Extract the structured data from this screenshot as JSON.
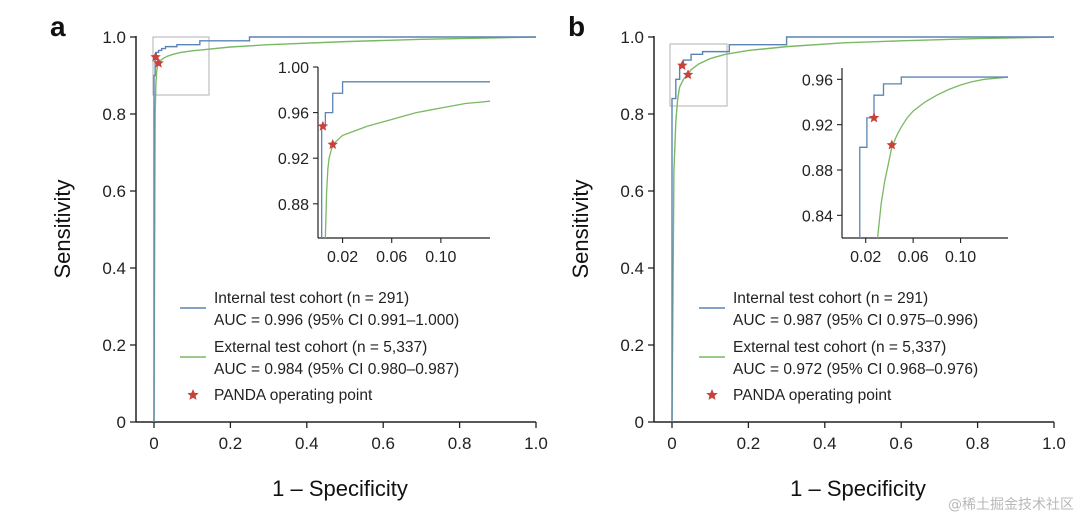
{
  "figure": {
    "watermark": "@稀土掘金技术社区"
  },
  "colors": {
    "internal": "#5b84b3",
    "external": "#79b962",
    "operating_point": "#c8413a",
    "axis": "#222222",
    "inset_box": "#bdbdbd"
  },
  "chart_data": [
    {
      "panel_label": "a",
      "type": "line",
      "xlabel": "1 – Specificity",
      "ylabel": "Sensitivity",
      "xlim": [
        0,
        1
      ],
      "ylim": [
        0,
        1
      ],
      "xticks": [
        "0",
        "0.2",
        "0.4",
        "0.6",
        "0.8",
        "1.0"
      ],
      "yticks": [
        "0",
        "0.2",
        "0.4",
        "0.6",
        "0.8",
        "1.0"
      ],
      "grid": false,
      "legend_placement": "lower-right",
      "series": [
        {
          "name": "Internal test cohort (n = 291)",
          "auc_label": "AUC = 0.996 (95% CI 0.991–1.000)",
          "x": [
            0,
            0,
            0.003,
            0.003,
            0.006,
            0.006,
            0.012,
            0.012,
            0.02,
            0.02,
            0.03,
            0.03,
            0.06,
            0.06,
            0.12,
            0.12,
            0.25,
            0.25,
            1.0
          ],
          "y": [
            0,
            0.9,
            0.9,
            0.945,
            0.945,
            0.96,
            0.96,
            0.965,
            0.965,
            0.97,
            0.97,
            0.975,
            0.975,
            0.98,
            0.98,
            0.99,
            0.99,
            1.0,
            1.0
          ]
        },
        {
          "name": "External test cohort (n = 5,337)",
          "auc_label": "AUC = 0.984 (95% CI 0.980–0.987)",
          "x": [
            0,
            0.003,
            0.005,
            0.007,
            0.009,
            0.011,
            0.014,
            0.018,
            0.025,
            0.035,
            0.05,
            0.07,
            0.1,
            0.13,
            0.2,
            0.3,
            0.5,
            0.7,
            0.9,
            1.0
          ],
          "y": [
            0,
            0.8,
            0.88,
            0.91,
            0.925,
            0.932,
            0.936,
            0.94,
            0.945,
            0.95,
            0.955,
            0.96,
            0.964,
            0.967,
            0.974,
            0.98,
            0.988,
            0.994,
            0.998,
            1.0
          ]
        }
      ],
      "operating_points": [
        {
          "series": "Internal test cohort",
          "x": 0.004,
          "y": 0.948
        },
        {
          "series": "External test cohort",
          "x": 0.012,
          "y": 0.932
        }
      ],
      "inset": {
        "xlim": [
          0,
          0.14
        ],
        "ylim": [
          0.85,
          1.0
        ],
        "xticks": [
          "0.02",
          "0.06",
          "0.10"
        ],
        "yticks": [
          "0.88",
          "0.92",
          "0.96",
          "1.00"
        ],
        "series": [
          {
            "name": "Internal test cohort (n = 291)",
            "x": [
              0.003,
              0.003,
              0.006,
              0.006,
              0.012,
              0.012,
              0.02,
              0.02,
              0.14
            ],
            "y": [
              0.85,
              0.948,
              0.948,
              0.96,
              0.96,
              0.977,
              0.977,
              0.987,
              0.987
            ]
          },
          {
            "name": "External test cohort (n = 5,337)",
            "x": [
              0.006,
              0.007,
              0.008,
              0.009,
              0.011,
              0.013,
              0.016,
              0.02,
              0.03,
              0.04,
              0.05,
              0.06,
              0.07,
              0.08,
              0.09,
              0.1,
              0.11,
              0.12,
              0.13,
              0.14
            ],
            "y": [
              0.85,
              0.89,
              0.91,
              0.92,
              0.928,
              0.933,
              0.936,
              0.94,
              0.944,
              0.948,
              0.951,
              0.954,
              0.957,
              0.96,
              0.962,
              0.964,
              0.966,
              0.968,
              0.969,
              0.97
            ]
          }
        ]
      }
    },
    {
      "panel_label": "b",
      "type": "line",
      "xlabel": "1 – Specificity",
      "ylabel": "Sensitivity",
      "xlim": [
        0,
        1
      ],
      "ylim": [
        0,
        1
      ],
      "xticks": [
        "0",
        "0.2",
        "0.4",
        "0.6",
        "0.8",
        "1.0"
      ],
      "yticks": [
        "0",
        "0.2",
        "0.4",
        "0.6",
        "0.8",
        "1.0"
      ],
      "grid": false,
      "legend_placement": "lower-right",
      "series": [
        {
          "name": "Internal test cohort (n = 291)",
          "auc_label": "AUC = 0.987 (95% CI 0.975–0.996)",
          "x": [
            0,
            0,
            0.01,
            0.01,
            0.02,
            0.02,
            0.03,
            0.03,
            0.05,
            0.05,
            0.08,
            0.08,
            0.15,
            0.15,
            0.3,
            0.3,
            1.0
          ],
          "y": [
            0,
            0.84,
            0.84,
            0.89,
            0.89,
            0.926,
            0.926,
            0.94,
            0.94,
            0.955,
            0.955,
            0.962,
            0.962,
            0.98,
            0.98,
            1.0,
            1.0
          ]
        },
        {
          "name": "External test cohort (n = 5,337)",
          "auc_label": "AUC = 0.972 (95% CI 0.968–0.976)",
          "x": [
            0,
            0.005,
            0.01,
            0.015,
            0.02,
            0.03,
            0.04,
            0.05,
            0.07,
            0.1,
            0.14,
            0.2,
            0.3,
            0.45,
            0.6,
            0.8,
            1.0
          ],
          "y": [
            0,
            0.65,
            0.78,
            0.84,
            0.87,
            0.89,
            0.902,
            0.915,
            0.93,
            0.944,
            0.955,
            0.965,
            0.975,
            0.985,
            0.99,
            0.996,
            1.0
          ]
        }
      ],
      "operating_points": [
        {
          "series": "Internal test cohort",
          "x": 0.027,
          "y": 0.926
        },
        {
          "series": "External test cohort",
          "x": 0.042,
          "y": 0.902
        }
      ],
      "inset": {
        "xlim": [
          0,
          0.14
        ],
        "ylim": [
          0.82,
          0.97
        ],
        "xticks": [
          "0.02",
          "0.06",
          "0.10"
        ],
        "yticks": [
          "0.84",
          "0.88",
          "0.92",
          "0.96"
        ],
        "series": [
          {
            "name": "Internal test cohort (n = 291)",
            "x": [
              0.015,
              0.015,
              0.021,
              0.021,
              0.027,
              0.027,
              0.035,
              0.035,
              0.05,
              0.05,
              0.14
            ],
            "y": [
              0.82,
              0.9,
              0.9,
              0.926,
              0.926,
              0.946,
              0.946,
              0.956,
              0.956,
              0.962,
              0.962
            ]
          },
          {
            "name": "External test cohort (n = 5,337)",
            "x": [
              0.03,
              0.033,
              0.036,
              0.039,
              0.042,
              0.046,
              0.05,
              0.055,
              0.06,
              0.07,
              0.08,
              0.09,
              0.1,
              0.11,
              0.12,
              0.13,
              0.14
            ],
            "y": [
              0.82,
              0.85,
              0.87,
              0.885,
              0.9,
              0.91,
              0.918,
              0.926,
              0.932,
              0.94,
              0.946,
              0.951,
              0.955,
              0.958,
              0.96,
              0.961,
              0.962
            ]
          }
        ]
      }
    }
  ],
  "legend": {
    "operating_point_label": "PANDA operating point"
  }
}
